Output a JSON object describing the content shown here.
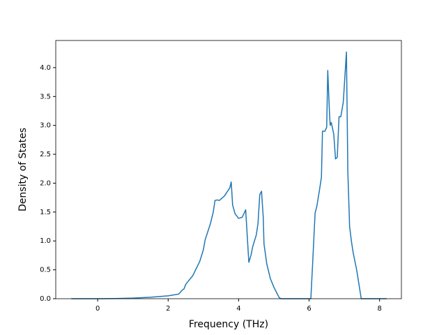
{
  "chart_data": {
    "type": "line",
    "x_label": "Frequency (THz)",
    "y_label": "Density of States",
    "xlim": [
      -1.19,
      8.62
    ],
    "ylim": [
      0,
      4.47
    ],
    "xticks": [
      0,
      2,
      4,
      6,
      8
    ],
    "yticks": [
      {
        "value": 0,
        "label": "0.0"
      },
      {
        "value": 0.5,
        "label": "0.5"
      },
      {
        "value": 1,
        "label": "1.0"
      },
      {
        "value": 1.5,
        "label": "1.5"
      },
      {
        "value": 2,
        "label": "2.0"
      },
      {
        "value": 2.5,
        "label": "2.5"
      },
      {
        "value": 3,
        "label": "3.0"
      },
      {
        "value": 3.5,
        "label": "3.5"
      },
      {
        "value": 4,
        "label": "4.0"
      }
    ],
    "x": [
      -0.75,
      0,
      0.5,
      1.0,
      1.5,
      2.0,
      2.3,
      2.4,
      2.45,
      2.5,
      2.7,
      2.9,
      3.0,
      3.05,
      3.2,
      3.28,
      3.33,
      3.4,
      3.45,
      3.6,
      3.75,
      3.79,
      3.83,
      3.9,
      4.0,
      4.1,
      4.15,
      4.2,
      4.29,
      4.35,
      4.4,
      4.5,
      4.55,
      4.6,
      4.65,
      4.7,
      4.72,
      4.8,
      4.9,
      5.0,
      5.1,
      5.15,
      5.2,
      6.05,
      6.1,
      6.17,
      6.22,
      6.3,
      6.35,
      6.38,
      6.45,
      6.5,
      6.53,
      6.58,
      6.6,
      6.63,
      6.7,
      6.75,
      6.8,
      6.85,
      6.9,
      6.97,
      7.06,
      7.1,
      7.15,
      7.2,
      7.25,
      7.35,
      7.48,
      8.2
    ],
    "series": [
      {
        "color": "#1f77b4",
        "values": [
          0,
          0,
          0.003,
          0.01,
          0.025,
          0.05,
          0.08,
          0.15,
          0.17,
          0.25,
          0.4,
          0.65,
          0.85,
          1.02,
          1.3,
          1.5,
          1.7,
          1.71,
          1.7,
          1.78,
          1.92,
          2.02,
          1.62,
          1.47,
          1.39,
          1.41,
          1.47,
          1.54,
          0.63,
          0.75,
          0.9,
          1.1,
          1.3,
          1.8,
          1.86,
          1.4,
          0.95,
          0.6,
          0.35,
          0.2,
          0.08,
          0.02,
          0,
          0,
          0.6,
          1.48,
          1.6,
          1.9,
          2.1,
          2.9,
          2.9,
          2.97,
          3.95,
          3.2,
          3.0,
          3.05,
          2.85,
          2.42,
          2.45,
          3.15,
          3.15,
          3.4,
          4.27,
          2.2,
          1.25,
          1.0,
          0.8,
          0.5,
          0,
          0
        ]
      }
    ]
  }
}
